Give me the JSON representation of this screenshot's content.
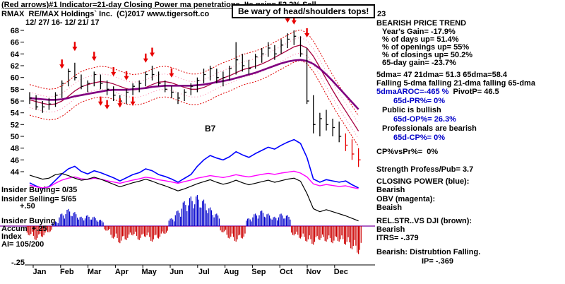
{
  "colors": {
    "blue_text": "#0000c8",
    "accent_red": "#e80000",
    "cp_blue": "#0000ff",
    "obv_magenta": "#ff00ff",
    "ma65_purple": "#800080",
    "ma21_darkred": "#a80040",
    "band_red": "#e00000",
    "band_pink": "#ff7aa2",
    "relstr_black": "#000000",
    "accum_blue": "#0000cc",
    "accum_red": "#cc0000",
    "zero_purple": "#7a00a0"
  },
  "header": {
    "line1_main": "(Red arrows)#1 Indicator=21-day Closing Power ma penetrations. Its gain= 52.2%",
    "line1_signal": " Sell",
    "line2": "RMAX  RE/MAX Holdings` Inc.  (C)2017 www.tigersoft.co",
    "callout": "Be wary of head/shoulders tops!",
    "number_right": "23",
    "date_range": "12/ 27/ 16- 12/ 21/ 17"
  },
  "right_panel": {
    "lines": [
      "BEARISH PRICE TREND",
      "Year's Gain= -17.9%",
      "% of days up= 51.4%",
      "% of openings up= 55%",
      "% of closings up= 50.2%",
      "65-day gain= -23.7%",
      "5dma= 47 21dma= 51.3 65dma=58.4",
      "Falling 5-dma falling 21-dma falling 65-dma",
      {
        "part1": "5dmaAROC=-465 %",
        "part2": "  PivotP= 46.5"
      },
      "65d-PR%= 0%",
      "Public is bullish",
      "65d-OP%= 26.3%",
      "Professionals are bearish",
      "65d-CP%= 0%",
      "CP%vsPr%=  0%",
      "Strength Profess/Pub= 3.7",
      "CLOSING POWER (blue):",
      "Bearish",
      "OBV (magenta):",
      "Beaish",
      "REL.STR..VS DJI (brown):",
      "Bearish",
      "ITRS= -.379",
      "Bearish: Distrubtion Falling.",
      "IP= -.369"
    ]
  },
  "left_labels": {
    "insider_buying1": "Insider Buying= 0/35",
    "insider_selling": "Insider Selling= 5/65",
    "cp_scale": "+.50",
    "insider_buying2": "Insider Buying",
    "accum_label": "Accum  +.25",
    "index_label": "Index",
    "ai_label": "AI= 105/200",
    "neg25_label": "-.25"
  },
  "chart_label_b7": "B7",
  "chart_data": {
    "type": "ohlc+indicators",
    "symbol": "RMAX",
    "title": "RMAX RE/MAX Holdings Inc.",
    "date_range": "12/27/16 - 12/21/17",
    "months": [
      "Jan",
      "Feb",
      "Mar",
      "Apr",
      "May",
      "Jun",
      "Jul",
      "Aug",
      "Sep",
      "Oct",
      "Nov",
      "Dec"
    ],
    "price_ticks": [
      68,
      66,
      64,
      62,
      60,
      58,
      56,
      54,
      52,
      50,
      48,
      46,
      44
    ],
    "price_range": [
      44,
      68
    ],
    "price_bars": [
      [
        57.5,
        55.5,
        56.5
      ],
      [
        57,
        54.5,
        55
      ],
      [
        56,
        54,
        55
      ],
      [
        56.5,
        54.5,
        55.5
      ],
      [
        57.5,
        55,
        57
      ],
      [
        59.5,
        56.5,
        59
      ],
      [
        61.5,
        58.5,
        61
      ],
      [
        62.5,
        59.5,
        60
      ],
      [
        60.5,
        58,
        58.5
      ],
      [
        59.5,
        57.5,
        59
      ],
      [
        61,
        58.5,
        60.5
      ],
      [
        60.5,
        58,
        59
      ],
      [
        59.5,
        57,
        58
      ],
      [
        58.5,
        56,
        57
      ],
      [
        57,
        55,
        56
      ],
      [
        58,
        55.5,
        57.5
      ],
      [
        59,
        57,
        58.5
      ],
      [
        59.5,
        57.5,
        59
      ],
      [
        61,
        58.5,
        60.5
      ],
      [
        62,
        59.5,
        60.5
      ],
      [
        61,
        58.5,
        59
      ],
      [
        59.5,
        57.5,
        58
      ],
      [
        58.5,
        56.5,
        57.5
      ],
      [
        57.5,
        55.5,
        56.5
      ],
      [
        58,
        56,
        57.5
      ],
      [
        59,
        57,
        58.5
      ],
      [
        60,
        57.5,
        59.5
      ],
      [
        61.5,
        59,
        60.5
      ],
      [
        62,
        59.5,
        61.5
      ],
      [
        61.5,
        59,
        60
      ],
      [
        61,
        58.5,
        60
      ],
      [
        62,
        59.5,
        61.5
      ],
      [
        66,
        60.5,
        63
      ],
      [
        64,
        61,
        62
      ],
      [
        63,
        60.5,
        61.5
      ],
      [
        64,
        61.5,
        63.5
      ],
      [
        65,
        62.5,
        64
      ],
      [
        66,
        63.5,
        65
      ],
      [
        65.5,
        63,
        64
      ],
      [
        66.5,
        64,
        65.5
      ],
      [
        67.5,
        65,
        66.5
      ],
      [
        68,
        65.5,
        67
      ],
      [
        67,
        63.5,
        64
      ],
      [
        65,
        55.5,
        56
      ],
      [
        57,
        50.5,
        52
      ],
      [
        54,
        50,
        53
      ],
      [
        54.5,
        51,
        52
      ],
      [
        53,
        50,
        51.5
      ],
      [
        52.5,
        49,
        50
      ],
      [
        50.5,
        47.5,
        48.5
      ],
      [
        49.5,
        46,
        47
      ],
      [
        48,
        44.8,
        46
      ]
    ],
    "red_bars": [
      49,
      50,
      51
    ],
    "ma21": [
      56.2,
      55.9,
      55.6,
      55.4,
      55.5,
      56,
      56.8,
      57.7,
      58.4,
      58.8,
      59.1,
      59.3,
      59.2,
      58.9,
      58.5,
      58.1,
      57.9,
      58,
      58.3,
      58.8,
      59.2,
      59.3,
      59.1,
      58.7,
      58.3,
      58,
      58,
      58.3,
      58.8,
      59.4,
      59.9,
      60.3,
      60.8,
      61.3,
      61.6,
      61.9,
      62.3,
      62.8,
      63.4,
      64,
      64.6,
      65.2,
      65.5,
      65,
      63.6,
      61.7,
      59.7,
      57.8,
      56,
      54.3,
      52.6,
      50.9
    ],
    "ma65": [
      56.5,
      56.4,
      56.3,
      56.2,
      56.2,
      56.3,
      56.5,
      56.8,
      57,
      57.2,
      57.4,
      57.6,
      57.8,
      57.9,
      57.9,
      57.9,
      58,
      58.1,
      58.2,
      58.4,
      58.5,
      58.6,
      58.6,
      58.6,
      58.6,
      58.6,
      58.7,
      58.8,
      59,
      59.2,
      59.4,
      59.6,
      59.9,
      60.2,
      60.5,
      60.8,
      61.2,
      61.6,
      62,
      62.4,
      62.7,
      62.9,
      63,
      62.8,
      62.3,
      61.5,
      60.5,
      59.4,
      58.2,
      57,
      55.8,
      54.6
    ],
    "band_offset": 2.6,
    "band_offset2": 1.3,
    "sell_arrows": [
      {
        "i": 5,
        "p": 61.5
      },
      {
        "i": 7,
        "p": 64.5
      },
      {
        "i": 10,
        "p": 62.8
      },
      {
        "i": 11,
        "p": 55.2
      },
      {
        "i": 12,
        "p": 54.6
      },
      {
        "i": 13,
        "p": 60.2
      },
      {
        "i": 14,
        "p": 54.9
      },
      {
        "i": 15,
        "p": 59.5
      },
      {
        "i": 16,
        "p": 55.2
      },
      {
        "i": 18,
        "p": 62.5
      },
      {
        "i": 19,
        "p": 63.5
      },
      {
        "i": 22,
        "p": 60
      },
      {
        "i": 40,
        "p": 69.3
      },
      {
        "i": 41,
        "p": 69
      },
      {
        "i": 43,
        "p": 66.8
      }
    ],
    "closing_power": [
      18,
      13,
      9,
      12,
      22,
      32,
      40,
      44,
      36,
      32,
      37,
      34,
      30,
      26,
      21,
      26,
      31,
      34,
      40,
      37,
      31,
      28,
      24,
      19,
      25,
      31,
      44,
      54,
      61,
      57,
      54,
      59,
      67,
      62,
      58,
      64,
      69,
      74,
      71,
      77,
      82,
      86,
      80,
      58,
      24,
      19,
      23,
      21,
      19,
      21,
      15,
      10
    ],
    "obv": [
      22,
      17,
      13,
      16,
      28,
      38,
      44,
      48,
      42,
      40,
      44,
      41,
      36,
      32,
      28,
      33,
      38,
      42,
      47,
      44,
      39,
      36,
      32,
      28,
      33,
      38,
      44,
      48,
      52,
      49,
      46,
      50,
      55,
      51,
      48,
      52,
      56,
      59,
      56,
      60,
      63,
      66,
      60,
      48,
      26,
      20,
      24,
      21,
      18,
      20,
      15,
      11
    ],
    "rel_strength": [
      96,
      92,
      88,
      90,
      97,
      99,
      95,
      90,
      86,
      88,
      92,
      88,
      83,
      78,
      73,
      77,
      81,
      84,
      88,
      84,
      79,
      75,
      70,
      65,
      69,
      74,
      79,
      83,
      87,
      82,
      78,
      81,
      86,
      81,
      77,
      80,
      83,
      86,
      82,
      85,
      88,
      90,
      84,
      60,
      30,
      24,
      28,
      24,
      20,
      16,
      11,
      6
    ],
    "accum_index": [
      -0.3,
      -0.45,
      -0.35,
      -0.2,
      0.15,
      0.4,
      0.55,
      0.45,
      0.3,
      0.35,
      0.3,
      0.2,
      -0.15,
      -0.4,
      -0.55,
      -0.45,
      -0.3,
      -0.45,
      -0.35,
      -0.5,
      -0.4,
      -0.25,
      0.25,
      0.5,
      0.8,
      0.95,
      1,
      0.85,
      0.6,
      0.4,
      -0.2,
      -0.4,
      -0.5,
      -0.4,
      0.25,
      0.4,
      0.5,
      0.4,
      0.3,
      0.4,
      0.35,
      -0.3,
      -0.4,
      -0.5,
      -0.6,
      -0.45,
      -0.5,
      -0.55,
      -0.5,
      -0.6,
      -0.75,
      -0.9
    ]
  }
}
